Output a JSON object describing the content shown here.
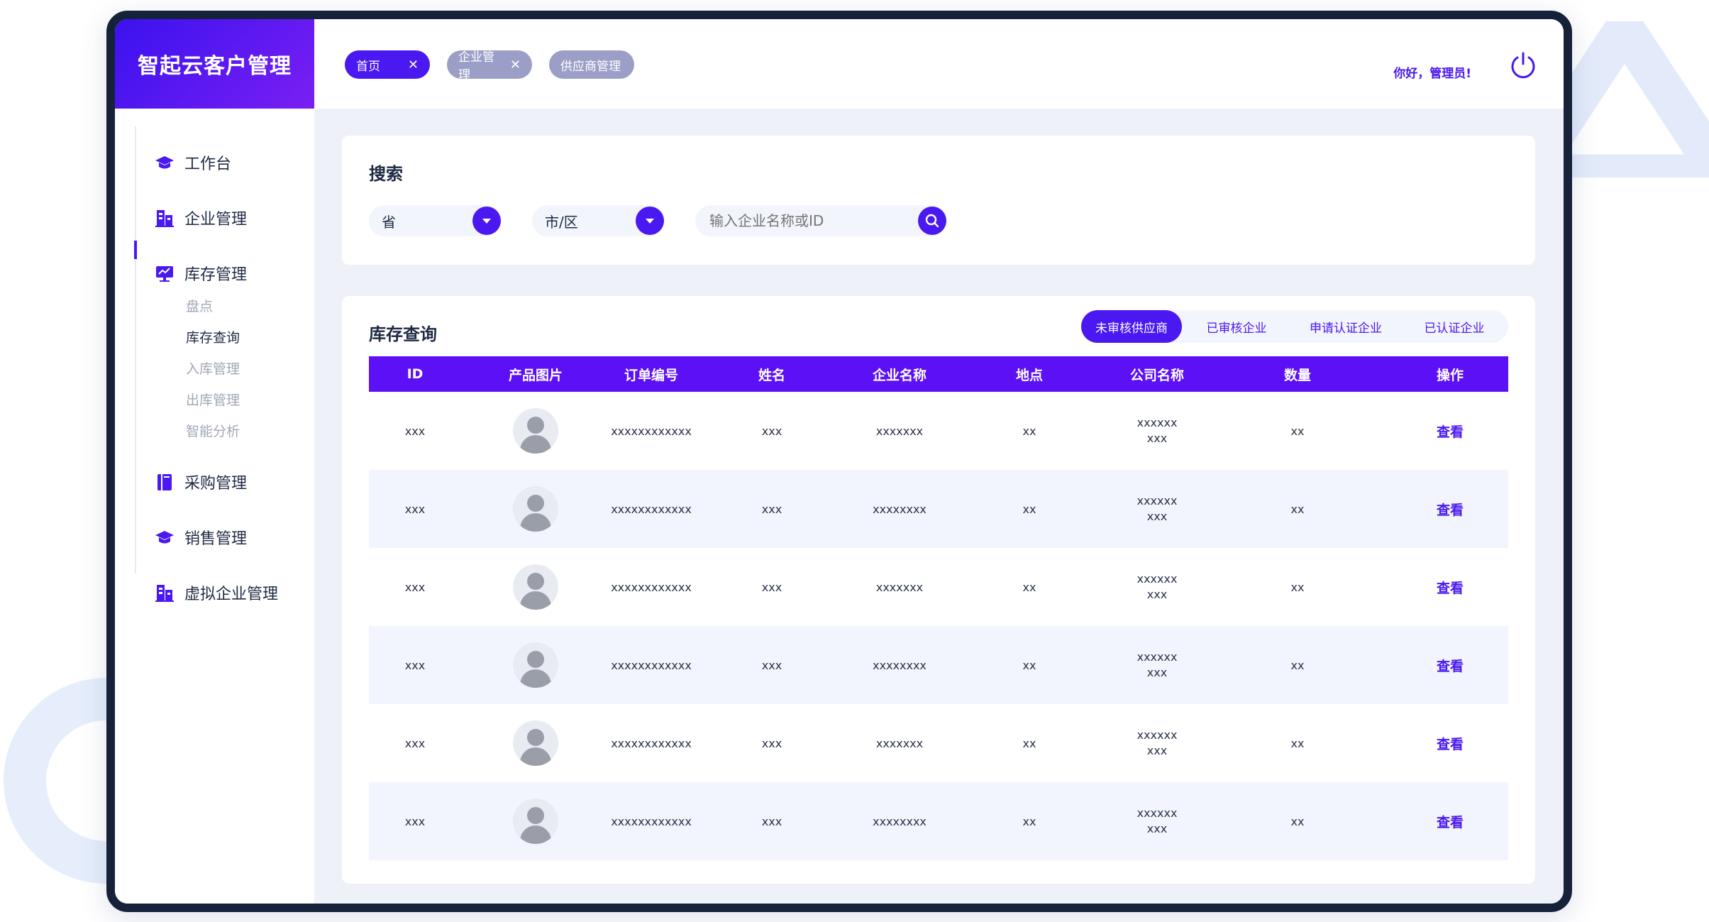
{
  "app": {
    "title": "智起云客户管理"
  },
  "colors": {
    "primary": "#4a18f0",
    "table_header": "#5b10f5",
    "tag_inactive": "#9b9fc7"
  },
  "tabs": [
    {
      "label": "首页",
      "closable": true,
      "active": true
    },
    {
      "label": "企业管理",
      "closable": true,
      "active": false
    },
    {
      "label": "供应商管理",
      "closable": false,
      "active": false
    }
  ],
  "header": {
    "greeting": "你好，管理员!",
    "power_icon": "power-icon"
  },
  "sidebar": {
    "items": [
      {
        "label": "工作台",
        "icon": "graduation-cap-icon"
      },
      {
        "label": "企业管理",
        "icon": "building-icon"
      },
      {
        "label": "库存管理",
        "icon": "monitor-chart-icon",
        "active": true,
        "children": [
          {
            "label": "盘点"
          },
          {
            "label": "库存查询",
            "current": true
          },
          {
            "label": "入库管理"
          },
          {
            "label": "出库管理"
          },
          {
            "label": "智能分析"
          }
        ]
      },
      {
        "label": "采购管理",
        "icon": "book-icon"
      },
      {
        "label": "销售管理",
        "icon": "graduation-cap-icon"
      },
      {
        "label": "虚拟企业管理",
        "icon": "building-icon"
      }
    ]
  },
  "search": {
    "title": "搜索",
    "province": "省",
    "city": "市/区",
    "placeholder": "输入企业名称或ID"
  },
  "inventory": {
    "title": "库存查询",
    "filters": [
      {
        "label": "未审核供应商",
        "active": true
      },
      {
        "label": "已审核企业",
        "active": false
      },
      {
        "label": "申请认证企业",
        "active": false
      },
      {
        "label": "已认证企业",
        "active": false
      }
    ],
    "columns": [
      "ID",
      "产品图片",
      "订单编号",
      "姓名",
      "企业名称",
      "地点",
      "公司名称",
      "数量",
      "操作"
    ],
    "rows": [
      {
        "id": "xxx",
        "order": "xxxxxxxxxxxx",
        "name": "xxx",
        "enterprise": "xxxxxxx",
        "location": "xx",
        "company_line1": "xxxxxx",
        "company_line2": "xxx",
        "qty": "xx",
        "action": "查看"
      },
      {
        "id": "xxx",
        "order": "xxxxxxxxxxxx",
        "name": "xxx",
        "enterprise": "xxxxxxxx",
        "location": "xx",
        "company_line1": "xxxxxx",
        "company_line2": "xxx",
        "qty": "xx",
        "action": "查看"
      },
      {
        "id": "xxx",
        "order": "xxxxxxxxxxxx",
        "name": "xxx",
        "enterprise": "xxxxxxx",
        "location": "xx",
        "company_line1": "xxxxxx",
        "company_line2": "xxx",
        "qty": "xx",
        "action": "查看"
      },
      {
        "id": "xxx",
        "order": "xxxxxxxxxxxx",
        "name": "xxx",
        "enterprise": "xxxxxxxx",
        "location": "xx",
        "company_line1": "xxxxxx",
        "company_line2": "xxx",
        "qty": "xx",
        "action": "查看"
      },
      {
        "id": "xxx",
        "order": "xxxxxxxxxxxx",
        "name": "xxx",
        "enterprise": "xxxxxxx",
        "location": "xx",
        "company_line1": "xxxxxx",
        "company_line2": "xxx",
        "qty": "xx",
        "action": "查看"
      },
      {
        "id": "xxx",
        "order": "xxxxxxxxxxxx",
        "name": "xxx",
        "enterprise": "xxxxxxxx",
        "location": "xx",
        "company_line1": "xxxxxx",
        "company_line2": "xxx",
        "qty": "xx",
        "action": "查看"
      }
    ]
  }
}
